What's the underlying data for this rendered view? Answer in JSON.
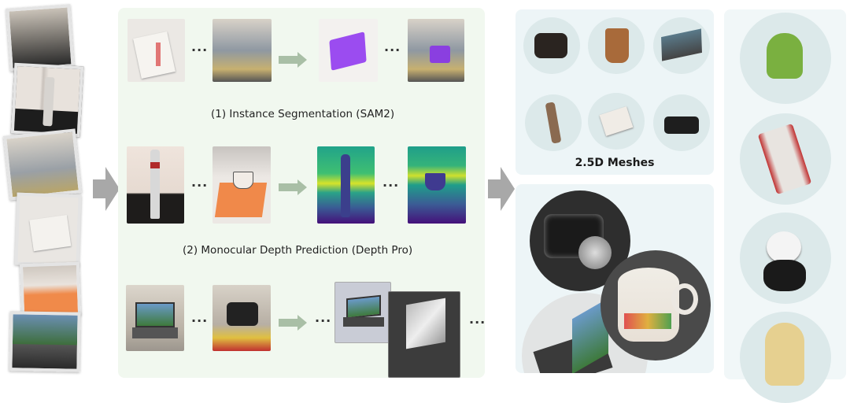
{
  "pipeline": {
    "step1_label": "(1) Instance Segmentation (SAM2)",
    "step2_label": "(2) Monocular Depth  Prediction (Depth Pro)",
    "ellipsis": "...",
    "meshes_label": "2.5D Meshes"
  },
  "colors": {
    "panel_green": "#f1f8ef",
    "panel_blue": "#edf5f7",
    "arrow_green": "#a9bfa6",
    "arrow_gray": "#a8a8a8",
    "mask_purple": "#9b4cf0"
  }
}
